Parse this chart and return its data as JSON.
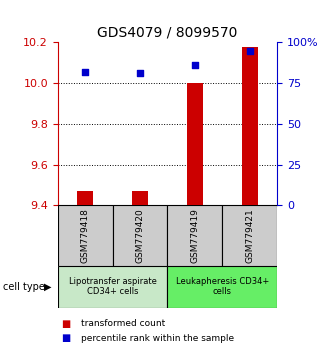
{
  "title": "GDS4079 / 8099570",
  "samples": [
    "GSM779418",
    "GSM779420",
    "GSM779419",
    "GSM779421"
  ],
  "transformed_count": [
    9.47,
    9.47,
    10.0,
    10.18
  ],
  "percentile_rank": [
    82,
    81,
    86,
    95
  ],
  "ylim_left": [
    9.4,
    10.2
  ],
  "ylim_right": [
    0,
    100
  ],
  "yticks_left": [
    9.4,
    9.6,
    9.8,
    10.0,
    10.2
  ],
  "yticks_right": [
    0,
    25,
    50,
    75,
    100
  ],
  "ytick_labels_right": [
    "0",
    "25",
    "50",
    "75",
    "100%"
  ],
  "grid_vals": [
    9.6,
    9.8,
    10.0
  ],
  "bar_color": "#cc0000",
  "dot_color": "#0000cc",
  "cell_types": [
    {
      "label": "Lipotransfer aspirate\nCD34+ cells",
      "color": "#c8e8c8",
      "samples": [
        0,
        1
      ]
    },
    {
      "label": "Leukapheresis CD34+\ncells",
      "color": "#66ee66",
      "samples": [
        2,
        3
      ]
    }
  ],
  "cell_type_label": "cell type",
  "legend_bar_label": "transformed count",
  "legend_dot_label": "percentile rank within the sample",
  "sample_box_color": "#cccccc",
  "left_axis_color": "#cc0000",
  "right_axis_color": "#0000cc",
  "bar_width": 0.3,
  "title_fontsize": 10
}
